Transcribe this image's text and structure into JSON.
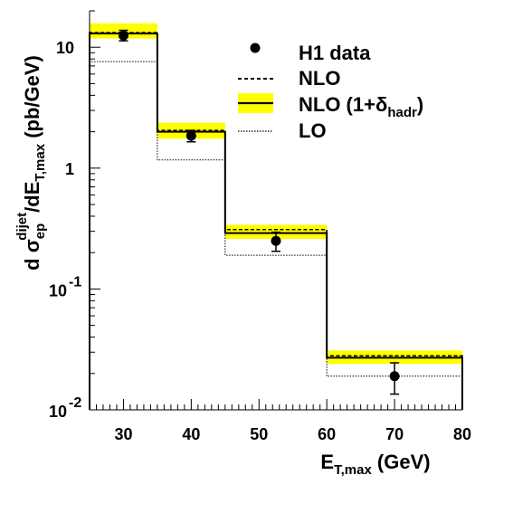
{
  "chart_data": {
    "type": "step",
    "title": "",
    "xlabel": {
      "main": "E",
      "sub": "T,max",
      "unit": " (GeV)"
    },
    "ylabel": {
      "d1": "d",
      "sigma": "σ",
      "sigma_sub": "ep",
      "sigma_sup": "dijet",
      "slash_d": "/dE",
      "e_sub": "T,max",
      "unit": " (pb/GeV)"
    },
    "x_range": [
      25,
      80
    ],
    "y_range": [
      0.01,
      20
    ],
    "y_scale": "log",
    "x_ticks": [
      "30",
      "40",
      "50",
      "60",
      "70",
      "80"
    ],
    "y_ticks": [
      {
        "value": 10,
        "base": "10",
        "exp": ""
      },
      {
        "value": 1,
        "base": "1",
        "exp": ""
      },
      {
        "value": 0.1,
        "base": "10",
        "exp": "-1"
      },
      {
        "value": 0.01,
        "base": "10",
        "exp": "-2"
      }
    ],
    "bins": [
      [
        25,
        35
      ],
      [
        35,
        45
      ],
      [
        45,
        60
      ],
      [
        60,
        80
      ]
    ],
    "series": [
      {
        "name": "H1 data",
        "style": "points",
        "x": [
          30,
          40,
          52.5,
          70
        ],
        "y": [
          12.5,
          1.85,
          0.25,
          0.019
        ],
        "err_lo": [
          11.3,
          1.65,
          0.205,
          0.0135
        ],
        "err_hi": [
          13.8,
          2.05,
          0.295,
          0.0245
        ]
      },
      {
        "name": "NLO",
        "style": "dashed",
        "y": [
          13.2,
          2.05,
          0.31,
          0.028
        ]
      },
      {
        "name": "NLO (1+",
        "name_delta": "δ",
        "name_sub": "hadr",
        "name_close": ")",
        "style": "solid-band",
        "y": [
          13.0,
          2.0,
          0.29,
          0.027
        ],
        "band_lo": [
          11.8,
          1.75,
          0.26,
          0.024
        ],
        "band_hi": [
          15.8,
          2.38,
          0.34,
          0.031
        ],
        "band_color": "#ffff00"
      },
      {
        "name": "LO",
        "style": "dotted",
        "y": [
          7.6,
          1.17,
          0.19,
          0.019
        ]
      }
    ],
    "grid": false,
    "legend_position": "top-right"
  }
}
